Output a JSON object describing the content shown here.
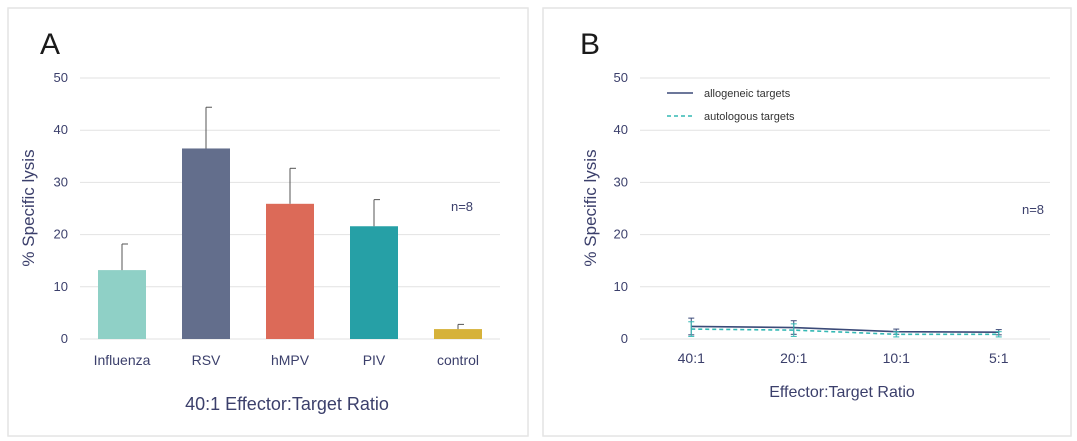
{
  "chart_data": [
    {
      "type": "bar",
      "panel_label": "A",
      "categories": [
        "Influenza",
        "RSV",
        "hMPV",
        "PIV",
        "control"
      ],
      "values": [
        13.2,
        36.5,
        25.9,
        21.6,
        1.9
      ],
      "errors": [
        5.0,
        7.9,
        6.8,
        5.1,
        0.9
      ],
      "colors": [
        "#8fd0c6",
        "#636e8c",
        "#dc6a58",
        "#26a0a6",
        "#d6b23a"
      ],
      "xlabel": "40:1 Effector:Target Ratio",
      "ylabel": "% Specific lysis",
      "ylim": [
        0,
        50
      ],
      "yticks": [
        "0",
        "10",
        "20",
        "30",
        "40",
        "50"
      ],
      "annotation": "n=8",
      "grid": true
    },
    {
      "type": "line",
      "panel_label": "B",
      "categories": [
        "40:1",
        "20:1",
        "10:1",
        "5:1"
      ],
      "series": [
        {
          "name": "allogeneic targets",
          "values": [
            2.4,
            2.2,
            1.4,
            1.3
          ],
          "errors": [
            1.6,
            1.3,
            0.5,
            0.5
          ],
          "color": "#3b4a78",
          "dash": "solid"
        },
        {
          "name": "autologous targets",
          "values": [
            1.9,
            1.7,
            0.9,
            0.9
          ],
          "errors": [
            1.4,
            1.2,
            0.5,
            0.5
          ],
          "color": "#34b8b4",
          "dash": "dashed"
        }
      ],
      "xlabel": "Effector:Target Ratio",
      "ylabel": "% Specific lysis",
      "ylim": [
        0,
        50
      ],
      "yticks": [
        "0",
        "10",
        "20",
        "30",
        "40",
        "50"
      ],
      "annotation": "n=8",
      "legend": "top-left",
      "grid": true
    }
  ]
}
